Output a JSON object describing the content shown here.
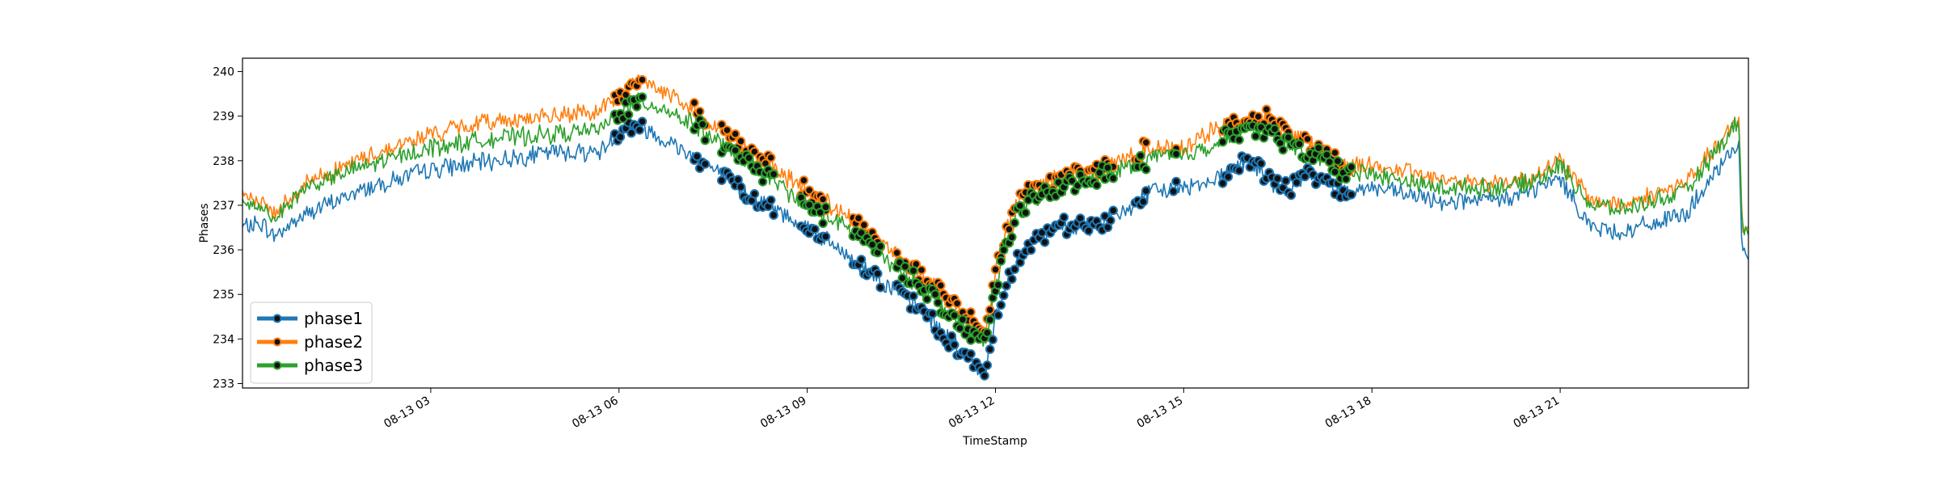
{
  "chart_data": {
    "type": "line",
    "xlabel": "TimeStamp",
    "ylabel": "Phases",
    "ylim": [
      232.9,
      240.3
    ],
    "xlim_hours": [
      0.0,
      24.0
    ],
    "x_ticks": [
      {
        "hour": 3,
        "label": "08-13 03"
      },
      {
        "hour": 6,
        "label": "08-13 06"
      },
      {
        "hour": 9,
        "label": "08-13 09"
      },
      {
        "hour": 12,
        "label": "08-13 12"
      },
      {
        "hour": 15,
        "label": "08-13 15"
      },
      {
        "hour": 18,
        "label": "08-13 18"
      },
      {
        "hour": 21,
        "label": "08-13 21"
      }
    ],
    "y_ticks": [
      233,
      234,
      235,
      236,
      237,
      238,
      239,
      240
    ],
    "legend_position": "lower-left",
    "series": [
      {
        "name": "phase1",
        "color": "#1f77b4",
        "x": [
          0,
          0.3,
          0.5,
          1,
          2,
          3,
          4,
          5,
          5.7,
          6.1,
          6.3,
          6.7,
          7.2,
          7.7,
          8,
          8.5,
          9,
          9.5,
          10,
          10.5,
          11,
          11.3,
          11.7,
          11.85,
          12,
          12.3,
          12.6,
          13,
          13.5,
          14,
          14.5,
          15,
          15.5,
          16,
          16.3,
          16.6,
          17,
          17.5,
          18,
          19,
          20,
          20.5,
          21,
          21.5,
          22,
          23,
          23.85,
          23.9,
          24
        ],
        "y": [
          236.5,
          236.6,
          236.3,
          236.8,
          237.4,
          237.8,
          238.0,
          238.2,
          238.2,
          238.8,
          238.8,
          238.5,
          238.1,
          237.6,
          237.3,
          236.9,
          236.5,
          236.0,
          235.5,
          235.0,
          234.4,
          233.9,
          233.4,
          233.3,
          234.5,
          235.7,
          236.2,
          236.5,
          236.5,
          236.8,
          237.3,
          237.4,
          237.6,
          238.0,
          237.7,
          237.3,
          237.7,
          237.3,
          237.4,
          237.1,
          237.1,
          237.3,
          237.6,
          236.5,
          236.4,
          236.8,
          238.4,
          236.0,
          235.9
        ]
      },
      {
        "name": "phase2",
        "color": "#ff7f0e",
        "x": [
          0,
          0.3,
          0.5,
          1,
          2,
          3,
          4,
          5,
          5.7,
          6.1,
          6.3,
          6.7,
          7.2,
          7.7,
          8,
          8.5,
          9,
          9.5,
          10,
          10.5,
          11,
          11.3,
          11.7,
          11.85,
          12,
          12.3,
          12.6,
          13,
          13.5,
          14,
          14.5,
          15,
          15.5,
          16,
          16.3,
          16.6,
          17,
          17.5,
          18,
          19,
          20,
          20.5,
          21,
          21.5,
          22,
          23,
          23.85,
          23.9,
          24
        ],
        "y": [
          237.1,
          237.1,
          236.8,
          237.5,
          238.1,
          238.6,
          238.9,
          239.0,
          239.1,
          239.6,
          239.8,
          239.6,
          239.1,
          238.6,
          238.3,
          237.8,
          237.3,
          236.9,
          236.3,
          235.8,
          235.3,
          234.8,
          234.3,
          234.2,
          235.5,
          237.0,
          237.4,
          237.6,
          237.8,
          238.0,
          238.3,
          238.3,
          238.7,
          238.9,
          239.0,
          238.7,
          238.4,
          237.9,
          237.9,
          237.6,
          237.5,
          237.6,
          238.0,
          237.1,
          237.0,
          237.5,
          238.9,
          236.6,
          236.5
        ]
      },
      {
        "name": "phase3",
        "color": "#2ca02c",
        "x": [
          0,
          0.3,
          0.5,
          1,
          2,
          3,
          4,
          5,
          5.7,
          6.1,
          6.3,
          6.7,
          7.2,
          7.7,
          8,
          8.5,
          9,
          9.5,
          10,
          10.5,
          11,
          11.3,
          11.7,
          11.85,
          12,
          12.3,
          12.6,
          13,
          13.5,
          14,
          14.5,
          15,
          15.5,
          16,
          16.3,
          16.6,
          17,
          17.5,
          18,
          19,
          20,
          20.5,
          21,
          21.5,
          22,
          23,
          23.85,
          23.9,
          24
        ],
        "y": [
          237.0,
          237.0,
          236.7,
          237.4,
          237.9,
          238.3,
          238.5,
          238.6,
          238.7,
          239.2,
          239.3,
          239.2,
          238.8,
          238.3,
          238.0,
          237.5,
          237.0,
          236.6,
          236.1,
          235.5,
          235.0,
          234.5,
          234.0,
          233.9,
          235.2,
          236.7,
          237.1,
          237.4,
          237.6,
          237.8,
          238.1,
          238.1,
          238.4,
          238.7,
          238.7,
          238.4,
          238.2,
          237.8,
          237.7,
          237.4,
          237.4,
          237.5,
          237.9,
          237.0,
          236.9,
          237.3,
          238.9,
          236.5,
          236.3
        ]
      }
    ],
    "marker_ranges_hours": [
      [
        5.9,
        6.4
      ],
      [
        7.2,
        7.4
      ],
      [
        7.6,
        8.5
      ],
      [
        8.9,
        9.3
      ],
      [
        9.7,
        10.2
      ],
      [
        10.4,
        12.2
      ],
      [
        12.2,
        13.9
      ],
      [
        14.2,
        14.4
      ],
      [
        14.8,
        14.9
      ],
      [
        15.6,
        17.7
      ]
    ],
    "marker_color": "#111111"
  }
}
